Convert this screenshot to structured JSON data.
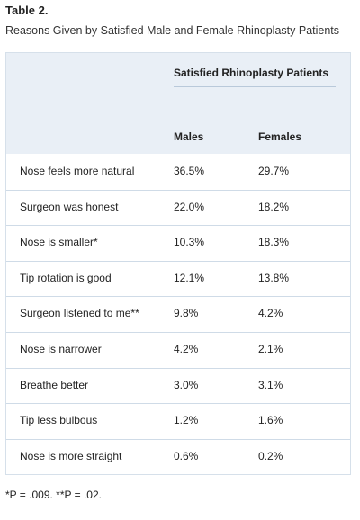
{
  "header": {
    "title": "Table 2.",
    "subtitle": "Reasons Given by Satisfied Male and Female Rhinoplasty Patients"
  },
  "table": {
    "group_header": "Satisfied Rhinoplasty Patients",
    "columns": [
      "Males",
      "Females"
    ],
    "rows": [
      [
        "Nose feels more natural",
        "36.5%",
        "29.7%"
      ],
      [
        "Surgeon was honest",
        "22.0%",
        "18.2%"
      ],
      [
        "Nose is smaller*",
        "10.3%",
        "18.3%"
      ],
      [
        "Tip rotation is good",
        "12.1%",
        "13.8%"
      ],
      [
        "Surgeon listened to me**",
        "9.8%",
        "4.2%"
      ],
      [
        "Nose is narrower",
        "4.2%",
        "2.1%"
      ],
      [
        "Breathe better",
        "3.0%",
        "3.1%"
      ],
      [
        "Tip less bulbous",
        "1.2%",
        "1.6%"
      ],
      [
        "Nose is more straight",
        "0.6%",
        "0.2%"
      ]
    ]
  },
  "footnote": "*P = .009. **P = .02."
}
